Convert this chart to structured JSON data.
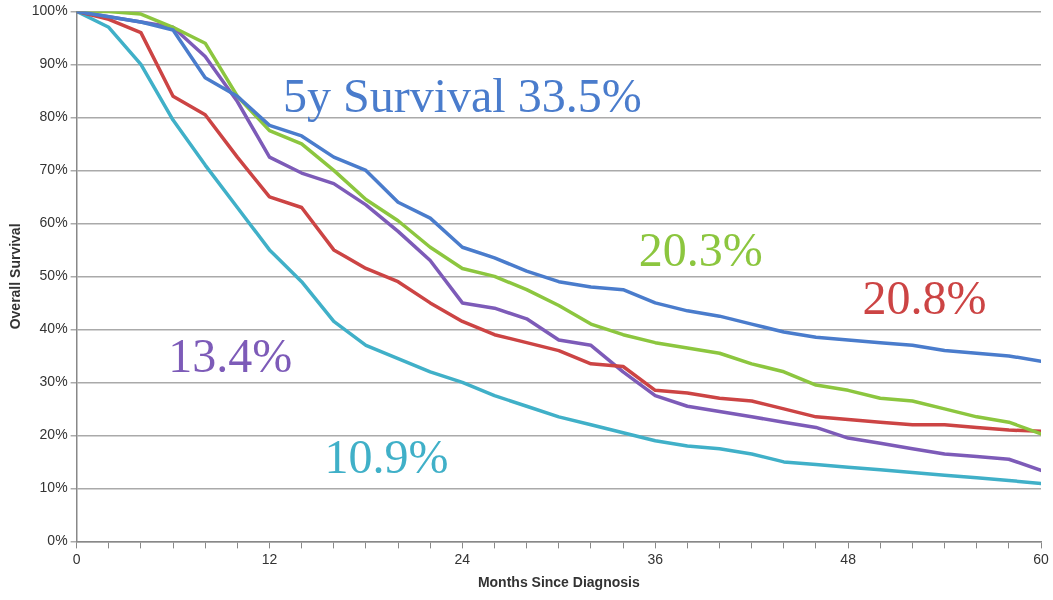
{
  "chart_data": {
    "type": "line",
    "xlabel": "Months Since Diagnosis",
    "ylabel": "Overall Survival",
    "x": [
      0,
      2,
      4,
      6,
      8,
      10,
      12,
      14,
      16,
      18,
      20,
      22,
      24,
      26,
      28,
      30,
      32,
      34,
      36,
      38,
      40,
      42,
      44,
      46,
      48,
      50,
      52,
      54,
      56,
      58,
      60
    ],
    "xlim": [
      0,
      60
    ],
    "xticks": [
      0,
      {
        "value": 2,
        "label": null
      },
      {
        "value": 4,
        "label": null
      },
      {
        "value": 6,
        "label": null
      },
      {
        "value": 8,
        "label": null
      },
      {
        "value": 10,
        "label": null
      },
      12,
      {
        "value": 14,
        "label": null
      },
      {
        "value": 16,
        "label": null
      },
      {
        "value": 18,
        "label": null
      },
      {
        "value": 20,
        "label": null
      },
      {
        "value": 22,
        "label": null
      },
      24,
      {
        "value": 26,
        "label": null
      },
      {
        "value": 28,
        "label": null
      },
      {
        "value": 30,
        "label": null
      },
      {
        "value": 32,
        "label": null
      },
      {
        "value": 34,
        "label": null
      },
      36,
      {
        "value": 38,
        "label": null
      },
      {
        "value": 40,
        "label": null
      },
      {
        "value": 42,
        "label": null
      },
      {
        "value": 44,
        "label": null
      },
      {
        "value": 46,
        "label": null
      },
      48,
      {
        "value": 50,
        "label": null
      },
      {
        "value": 52,
        "label": null
      },
      {
        "value": 54,
        "label": null
      },
      {
        "value": 56,
        "label": null
      },
      {
        "value": 58,
        "label": null
      },
      60
    ],
    "ylim": [
      0,
      100
    ],
    "yticks": [
      {
        "value": 0,
        "label": "0%"
      },
      {
        "value": 10,
        "label": "10%"
      },
      {
        "value": 20,
        "label": "20%"
      },
      {
        "value": 30,
        "label": "30%"
      },
      {
        "value": 40,
        "label": "40%"
      },
      {
        "value": 50,
        "label": "50%"
      },
      {
        "value": 60,
        "label": "60%"
      },
      {
        "value": 70,
        "label": "70%"
      },
      {
        "value": 80,
        "label": "80%"
      },
      {
        "value": 90,
        "label": "90%"
      },
      {
        "value": 100,
        "label": "100%"
      }
    ],
    "grid": "y",
    "legend": false,
    "marker": "none",
    "line_style": "solid",
    "series": [
      {
        "color": "#4a7ccc",
        "values": [
          100,
          99,
          98,
          96.5,
          87.5,
          84,
          78.5,
          76.5,
          72.5,
          70,
          64,
          61,
          55.5,
          53.5,
          51,
          49,
          48,
          47.5,
          45,
          43.5,
          42.5,
          41,
          39.5,
          38.5,
          38,
          37.5,
          37,
          36,
          35.5,
          35,
          34
        ]
      },
      {
        "color": "#8cc63f",
        "values": [
          100,
          100,
          99.5,
          97,
          94,
          84,
          77.5,
          75,
          70,
          64.5,
          60.5,
          55.5,
          51.5,
          50,
          47.5,
          44.5,
          41,
          39,
          37.5,
          36.5,
          35.5,
          33.5,
          32,
          29.5,
          28.5,
          27,
          26.5,
          25,
          23.5,
          22.5,
          20.3
        ]
      },
      {
        "color": "#cc4444",
        "values": [
          100,
          98.5,
          96,
          84,
          80.5,
          72.5,
          65,
          63,
          55,
          51.5,
          49,
          45,
          41.5,
          39,
          37.5,
          36,
          33.5,
          33,
          28.5,
          28,
          27,
          26.5,
          25,
          23.5,
          23,
          22.5,
          22,
          22,
          21.5,
          21,
          20.8
        ]
      },
      {
        "color": "#7d5bb8",
        "values": [
          100,
          99,
          98,
          97,
          91.5,
          83,
          72.5,
          69.5,
          67.5,
          63.5,
          58.5,
          53,
          45,
          44,
          42,
          38,
          37,
          32,
          27.5,
          25.5,
          24.5,
          23.5,
          22.5,
          21.5,
          19.5,
          18.5,
          17.5,
          16.5,
          16,
          15.5,
          13.4
        ]
      },
      {
        "color": "#40b0c8",
        "values": [
          100,
          97,
          90,
          79.5,
          71,
          63,
          55,
          49,
          41.5,
          37,
          34.5,
          32,
          30,
          27.5,
          25.5,
          23.5,
          22,
          20.5,
          19,
          18,
          17.5,
          16.5,
          15,
          14.5,
          14,
          13.5,
          13,
          12.5,
          12,
          11.5,
          10.9
        ]
      }
    ],
    "annotations": [
      "5y Survival 33.5%",
      "20.3%",
      "20.8%",
      "13.4%",
      "10.9%"
    ]
  }
}
